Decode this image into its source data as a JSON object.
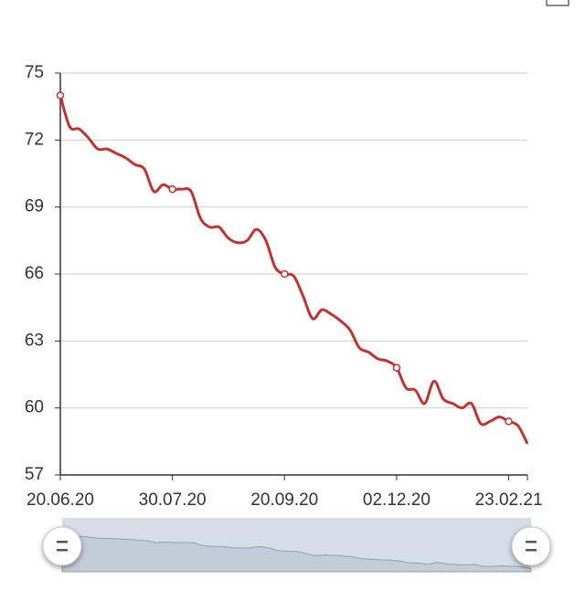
{
  "chart_data": {
    "type": "line",
    "categories": [
      "20.06.20",
      null,
      null,
      null,
      null,
      null,
      null,
      null,
      null,
      null,
      null,
      null,
      "30.07.20",
      null,
      null,
      null,
      null,
      null,
      null,
      null,
      null,
      null,
      null,
      null,
      "20.09.20",
      null,
      null,
      null,
      null,
      null,
      null,
      null,
      null,
      null,
      null,
      null,
      "02.12.20",
      null,
      null,
      null,
      null,
      null,
      null,
      null,
      null,
      null,
      null,
      null,
      "23.02.21",
      null,
      null
    ],
    "series": [
      {
        "color": "#c0332f",
        "values": [
          74.0,
          72.6,
          72.5,
          72.1,
          71.6,
          71.6,
          71.4,
          71.2,
          70.9,
          70.7,
          69.7,
          70.0,
          69.8,
          69.8,
          69.7,
          68.5,
          68.1,
          68.1,
          67.6,
          67.4,
          67.5,
          68.0,
          67.5,
          66.3,
          66.0,
          65.9,
          65.0,
          64.0,
          64.4,
          64.2,
          63.9,
          63.5,
          62.7,
          62.5,
          62.2,
          62.1,
          61.8,
          60.9,
          60.8,
          60.2,
          61.2,
          60.4,
          60.2,
          60.0,
          60.2,
          59.3,
          59.4,
          59.6,
          59.4,
          59.2,
          58.4
        ]
      }
    ],
    "ylim": [
      57,
      75
    ],
    "yticks": [
      57,
      60,
      63,
      66,
      69,
      72,
      75
    ],
    "grid": true,
    "smooth": true,
    "data_zoom": true
  }
}
